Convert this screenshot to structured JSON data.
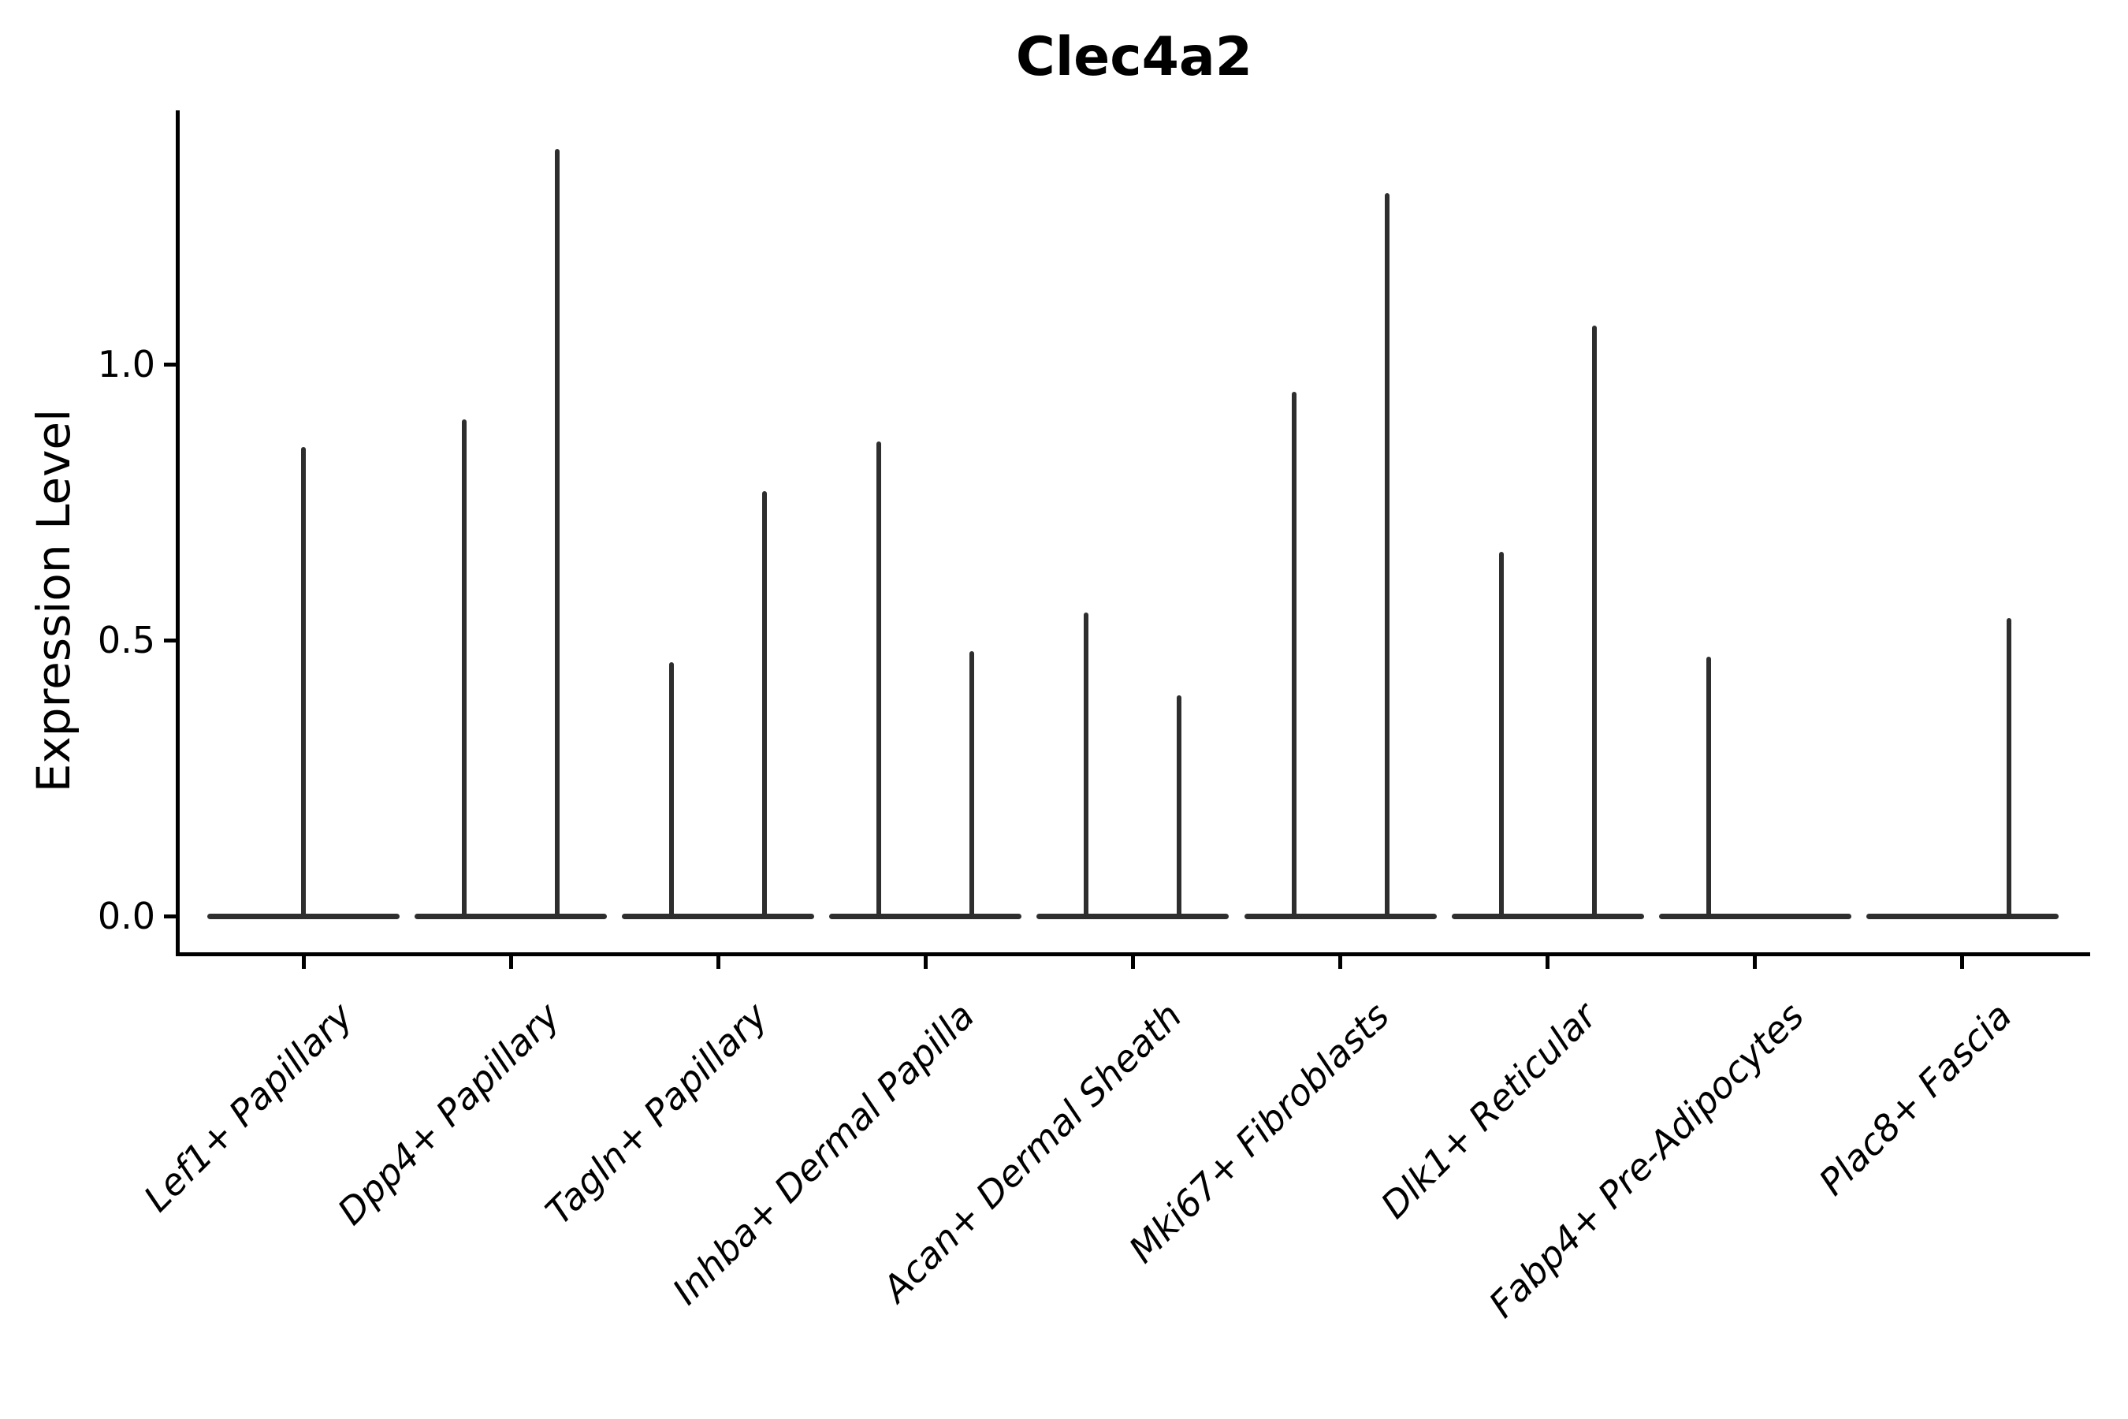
{
  "title": "Clec4a2",
  "colors": {
    "violin": "#2e2e2e",
    "axis": "#000000",
    "text": "#000000",
    "background": "#ffffff"
  },
  "chart_data": {
    "type": "violin",
    "title": "Clec4a2",
    "xlabel": "",
    "ylabel": "Expression Level",
    "yticks": [
      "0.0",
      "0.5",
      "1.0"
    ],
    "ylim": [
      0,
      1.46
    ],
    "grid": false,
    "legend": "none",
    "categories": [
      "Lef1+ Papillary",
      "Dpp4+ Papillary",
      "Tagln+ Papillary",
      "Inhba+ Dermal Papilla",
      "Acan+ Dermal Sheath",
      "Mki67+ Fibroblasts",
      "Dlk1+ Reticular",
      "Fabp4+ Pre-Adipocytes",
      "Plac8+ Fascia"
    ],
    "violins": [
      {
        "category": "Lef1+ Papillary",
        "spikes": [
          {
            "side": "center",
            "max": 0.85
          }
        ]
      },
      {
        "category": "Dpp4+ Papillary",
        "spikes": [
          {
            "side": "left",
            "max": 0.9
          },
          {
            "side": "right",
            "max": 1.39
          }
        ]
      },
      {
        "category": "Tagln+ Papillary",
        "spikes": [
          {
            "side": "left",
            "max": 0.46
          },
          {
            "side": "right",
            "max": 0.77
          }
        ]
      },
      {
        "category": "Inhba+ Dermal Papilla",
        "spikes": [
          {
            "side": "left",
            "max": 0.86
          },
          {
            "side": "right",
            "max": 0.48
          }
        ]
      },
      {
        "category": "Acan+ Dermal Sheath",
        "spikes": [
          {
            "side": "left",
            "max": 0.55
          },
          {
            "side": "right",
            "max": 0.4
          }
        ]
      },
      {
        "category": "Mki67+ Fibroblasts",
        "spikes": [
          {
            "side": "left",
            "max": 0.95
          },
          {
            "side": "right",
            "max": 1.31
          }
        ]
      },
      {
        "category": "Dlk1+ Reticular",
        "spikes": [
          {
            "side": "left",
            "max": 0.66
          },
          {
            "side": "right",
            "max": 1.07
          }
        ]
      },
      {
        "category": "Fabp4+ Pre-Adipocytes",
        "spikes": [
          {
            "side": "left",
            "max": 0.47
          }
        ]
      },
      {
        "category": "Plac8+ Fascia",
        "spikes": [
          {
            "side": "right",
            "max": 0.54
          }
        ]
      }
    ],
    "baseline_value": 0.0
  }
}
